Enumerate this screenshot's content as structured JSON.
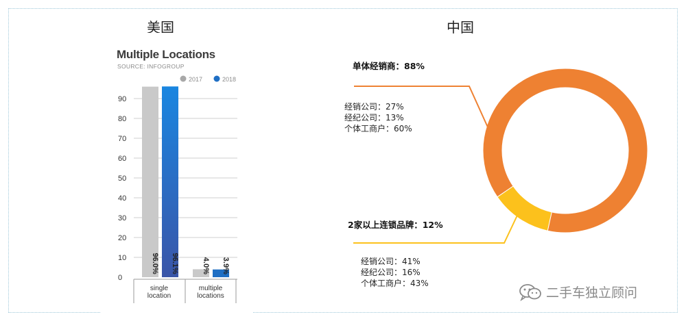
{
  "regions": {
    "us_title": "美国",
    "cn_title": "中国"
  },
  "chart_data": [
    {
      "type": "bar",
      "title": "Multiple Locations",
      "subtitle": "SOURCE: INFOGROUP",
      "categories": [
        "single\nlocation",
        "multiple\nlocations"
      ],
      "category_lines": [
        [
          "single",
          "location"
        ],
        [
          "multiple",
          "locations"
        ]
      ],
      "series": [
        {
          "name": "2017",
          "color": "#c9c9c9",
          "values": [
            96.0,
            4.0
          ],
          "labels": [
            "96.0%",
            "4.0%"
          ]
        },
        {
          "name": "2018",
          "color": "#1f6fc4",
          "values": [
            96.1,
            3.9
          ],
          "labels": [
            "96.1%",
            "3.9%"
          ]
        }
      ],
      "yticks": [
        0,
        10,
        20,
        30,
        40,
        50,
        60,
        70,
        80,
        90
      ],
      "ylim": [
        0,
        100
      ],
      "legend_position": "top-right",
      "grid": true
    },
    {
      "type": "pie",
      "variant": "donut",
      "slices": [
        {
          "label": "单体经销商：88%",
          "value": 88,
          "color": "#ee8132",
          "breakdown": [
            "经销公司：27%",
            "经纪公司：13%",
            "个体工商户：60%"
          ]
        },
        {
          "label": "2家以上连锁品牌：12%",
          "value": 12,
          "color": "#fcc11c",
          "breakdown": [
            "经销公司：41%",
            "经纪公司：16%",
            "个体工商户：43%"
          ]
        }
      ]
    }
  ],
  "watermark": {
    "text": "二手车独立顾问",
    "icon": "wechat-icon"
  }
}
